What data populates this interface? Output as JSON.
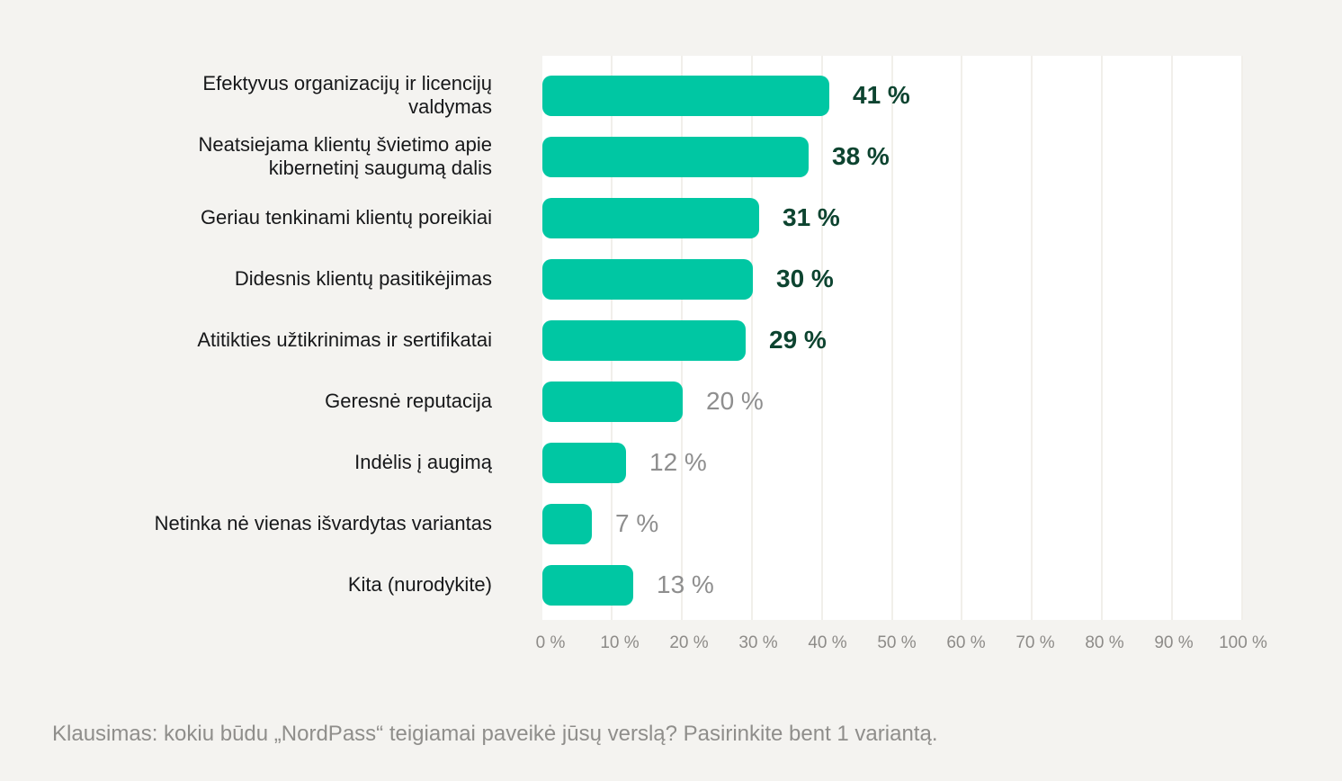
{
  "chart_data": {
    "type": "bar",
    "orientation": "horizontal",
    "title": "",
    "categories": [
      "Efektyvus organizacijų ir licencijų\nvaldymas",
      "Neatsiejama klientų švietimo apie\nkibernetinį saugumą dalis",
      "Geriau tenkinami klientų poreikiai",
      "Didesnis klientų pasitikėjimas",
      "Atitikties užtikrinimas ir sertifikatai",
      "Geresnė reputacija",
      "Indėlis į augimą",
      "Netinka nė vienas išvardytas variantas",
      "Kita (nurodykite)"
    ],
    "values": [
      41,
      38,
      31,
      30,
      29,
      20,
      12,
      7,
      13
    ],
    "value_labels": [
      "41 %",
      "38 %",
      "31 %",
      "30 %",
      "29 %",
      "20 %",
      "12 %",
      "7 %",
      "13 %"
    ],
    "value_label_style": [
      "strong",
      "strong",
      "strong",
      "strong",
      "strong",
      "muted",
      "muted",
      "muted",
      "muted"
    ],
    "x_tick_labels": [
      "0 %",
      "10 %",
      "20 %",
      "30 %",
      "40 %",
      "50 %",
      "60 %",
      "70 %",
      "80 %",
      "90 %",
      "100 %"
    ],
    "xlim": [
      0,
      100
    ],
    "grid": "vertical-light",
    "legend": "none",
    "caption": "Klausimas: kokiu būdu „NordPass“ teigiamai paveikė jūsų verslą? Pasirinkite bent 1 variantą.",
    "colors": {
      "background": "#F4F3F0",
      "plot_background": "#FFFFFF",
      "bar": "#00C7A3",
      "gridline": "#F1EFEA",
      "value_strong": "#0D4430",
      "value_muted": "#8E8E8E",
      "category_text": "#17181A",
      "axis_text": "#8D8B88",
      "caption_text": "#8F8E8B"
    }
  }
}
